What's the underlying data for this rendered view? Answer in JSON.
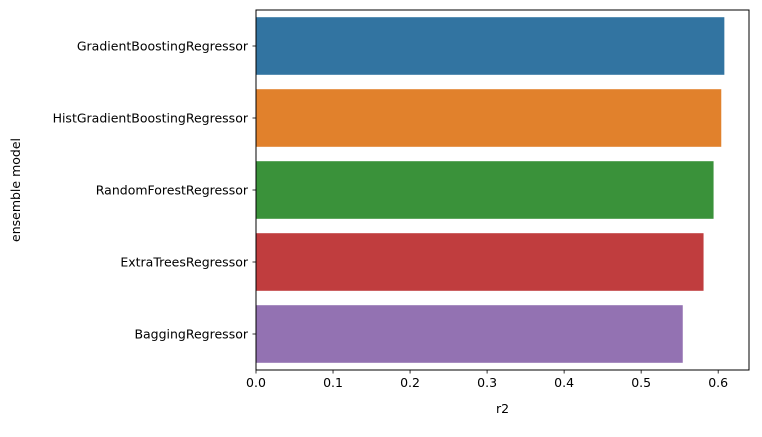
{
  "chart_data": {
    "type": "bar",
    "orientation": "horizontal",
    "categories": [
      "GradientBoostingRegressor",
      "HistGradientBoostingRegressor",
      "RandomForestRegressor",
      "ExtraTreesRegressor",
      "BaggingRegressor"
    ],
    "values": [
      0.608,
      0.604,
      0.594,
      0.581,
      0.554
    ],
    "colors": [
      "#3274a1",
      "#e1812c",
      "#3a923a",
      "#c03d3e",
      "#9372b2"
    ],
    "xlabel": "r2",
    "ylabel": "ensemble model",
    "xlim": [
      0,
      0.64
    ],
    "xticks": [
      0.0,
      0.1,
      0.2,
      0.3,
      0.4,
      0.5,
      0.6
    ],
    "xtick_labels": [
      "0.0",
      "0.1",
      "0.2",
      "0.3",
      "0.4",
      "0.5",
      "0.6"
    ],
    "grid": false,
    "legend": "none"
  }
}
